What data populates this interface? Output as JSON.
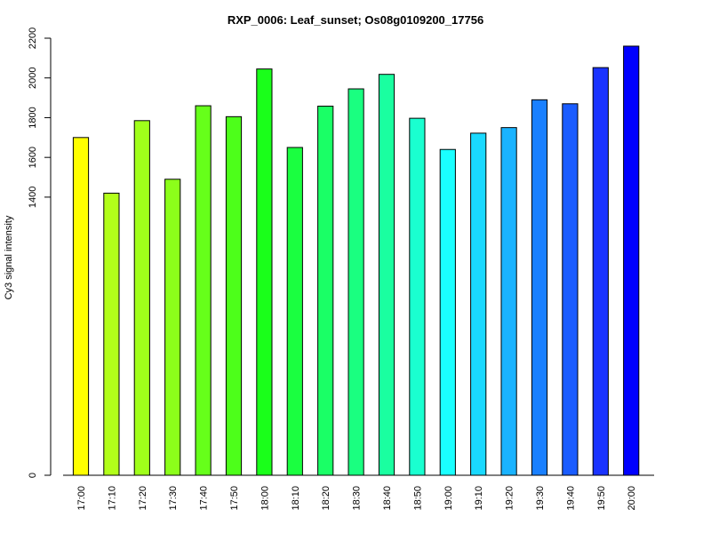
{
  "chart_data": {
    "type": "bar",
    "title": "RXP_0006: Leaf_sunset; Os08g0109200_17756",
    "xlabel": "",
    "ylabel": "Cy3 signal intensity",
    "ylim": [
      0,
      2200
    ],
    "yticks": [
      0,
      1400,
      1600,
      1800,
      2000,
      2200
    ],
    "categories": [
      "17:00",
      "17:10",
      "17:20",
      "17:30",
      "17:40",
      "17:50",
      "18:00",
      "18:10",
      "18:20",
      "18:30",
      "18:40",
      "18:50",
      "19:00",
      "19:10",
      "19:20",
      "19:30",
      "19:40",
      "19:50",
      "20:00"
    ],
    "values": [
      1700,
      1420,
      1785,
      1490,
      1860,
      1805,
      2045,
      1650,
      1858,
      1945,
      2018,
      1797,
      1640,
      1722,
      1750,
      1890,
      1870,
      2052,
      2160
    ],
    "colors": [
      "#FFFF00",
      "#B2FF1A",
      "#A0FF1A",
      "#8CFF1A",
      "#66FF1A",
      "#4DFF1A",
      "#1AFF1A",
      "#1AFF40",
      "#1AFF66",
      "#1AFF80",
      "#1AFFA0",
      "#1AFFD0",
      "#1AFFFF",
      "#1AD9FF",
      "#1AB3FF",
      "#1A80FF",
      "#1A5CFF",
      "#1A33FF",
      "#0000FF"
    ],
    "grid": false,
    "legend": "none"
  }
}
